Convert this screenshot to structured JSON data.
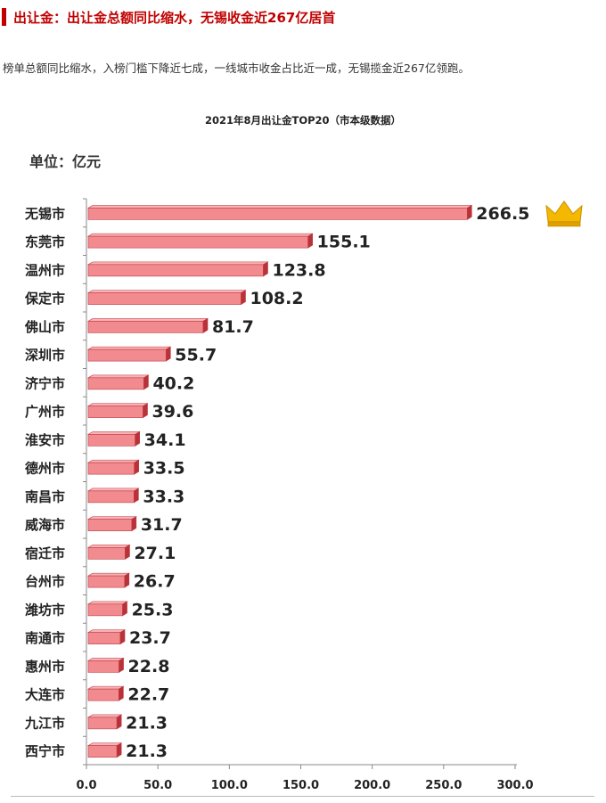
{
  "article": {
    "heading": "出让金：出让金总额同比缩水，无锡收金近267亿居首",
    "summary": "榜单总额同比缩水，入榜门槛下降近七成，一线城市收金占比近一成，无锡揽金近267亿领跑。"
  },
  "chart_data": {
    "type": "bar",
    "orientation": "horizontal",
    "title": "2021年8月出让金TOP20（市本级数据）",
    "unit_label": "单位：亿元",
    "categories": [
      "无锡市",
      "东莞市",
      "温州市",
      "保定市",
      "佛山市",
      "深圳市",
      "济宁市",
      "广州市",
      "淮安市",
      "德州市",
      "南昌市",
      "威海市",
      "宿迁市",
      "台州市",
      "潍坊市",
      "南通市",
      "惠州市",
      "大连市",
      "九江市",
      "西宁市"
    ],
    "values": [
      266.5,
      155.1,
      123.8,
      108.2,
      81.7,
      55.7,
      40.2,
      39.6,
      34.1,
      33.5,
      33.3,
      31.7,
      27.1,
      26.7,
      25.3,
      23.7,
      22.8,
      22.7,
      21.3,
      21.3
    ],
    "value_labels": [
      "266.5",
      "155.1",
      "123.8",
      "108.2",
      "81.7",
      "55.7",
      "40.2",
      "39.6",
      "34.1",
      "33.5",
      "33.3",
      "31.7",
      "27.1",
      "26.7",
      "25.3",
      "23.7",
      "22.8",
      "22.7",
      "21.3",
      "21.3"
    ],
    "xlim": [
      0,
      300
    ],
    "xticks": [
      0,
      50,
      100,
      150,
      200,
      250,
      300
    ],
    "xtick_labels": [
      "0.0",
      "50.0",
      "100.0",
      "150.0",
      "200.0",
      "250.0",
      "300.0"
    ],
    "grid": false,
    "bar_color": "#f28b8f",
    "bar_edge_color": "#c0393f",
    "highlight": {
      "category": "无锡市",
      "icon": "crown-icon",
      "color": "#f5b800"
    }
  }
}
